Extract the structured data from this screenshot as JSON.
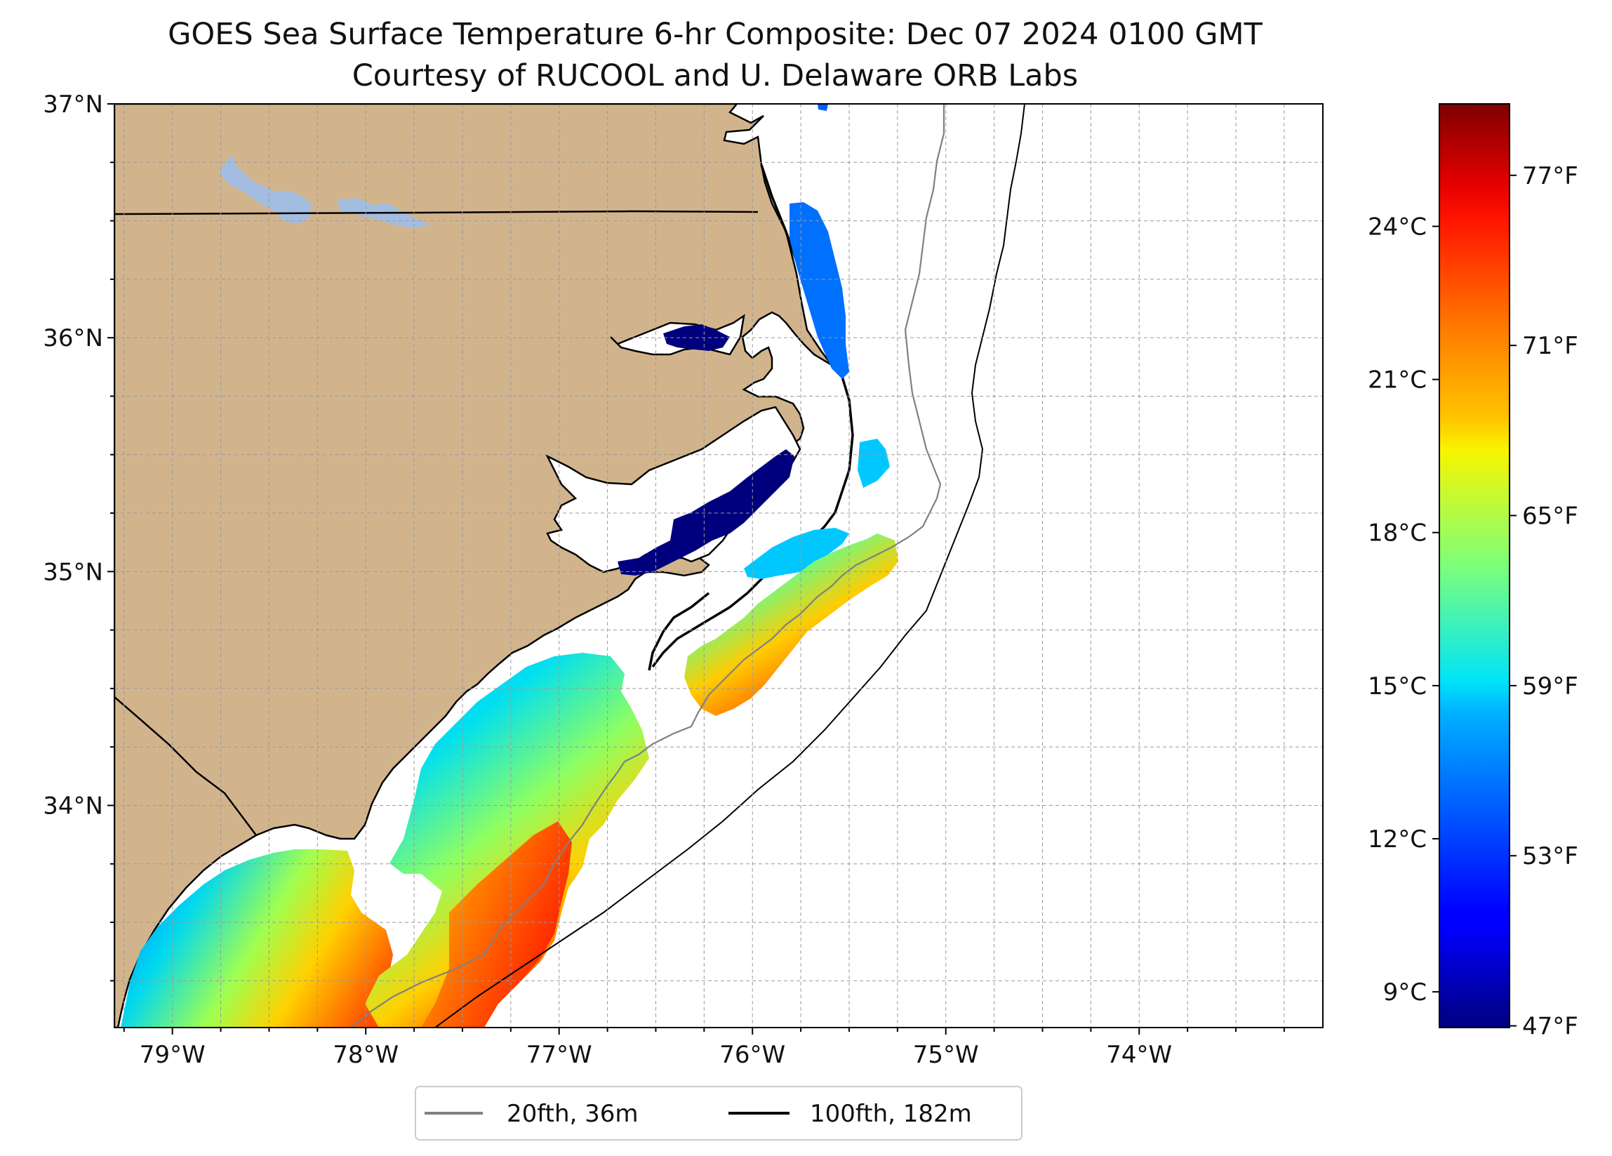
{
  "title": {
    "line1": "GOES Sea Surface Temperature 6-hr Composite: Dec 07 2024 0100 GMT",
    "line2": "Courtesy of RUCOOL and U. Delaware ORB Labs"
  },
  "map": {
    "lon_range": [
      -79.3,
      -73.05
    ],
    "lat_range": [
      33.05,
      37.0
    ],
    "lon_ticks": [
      {
        "value": -79,
        "label": "79°W"
      },
      {
        "value": -78,
        "label": "78°W"
      },
      {
        "value": -77,
        "label": "77°W"
      },
      {
        "value": -76,
        "label": "76°W"
      },
      {
        "value": -75,
        "label": "75°W"
      },
      {
        "value": -74,
        "label": "74°W"
      }
    ],
    "lat_ticks": [
      {
        "value": 37,
        "label": "37°N"
      },
      {
        "value": 36,
        "label": "36°N"
      },
      {
        "value": 35,
        "label": "35°N"
      },
      {
        "value": 34,
        "label": "34°N"
      }
    ],
    "grid": true,
    "colors": {
      "land": "#d2b48c",
      "lake": "#a2bde0",
      "coastline": "#000000",
      "isobath_20fth": "#808080",
      "isobath_100fth": "#000000"
    }
  },
  "legend": {
    "items": [
      {
        "label": "20fth, 36m",
        "color": "#808080"
      },
      {
        "label": "100fth, 182m",
        "color": "#000000"
      }
    ]
  },
  "colorbar": {
    "cmap": "jet",
    "range_c": [
      8.3,
      26.4
    ],
    "celsius_ticks": [
      {
        "value": 9,
        "label": "9°C"
      },
      {
        "value": 12,
        "label": "12°C"
      },
      {
        "value": 15,
        "label": "15°C"
      },
      {
        "value": 18,
        "label": "18°C"
      },
      {
        "value": 21,
        "label": "21°C"
      },
      {
        "value": 24,
        "label": "24°C"
      }
    ],
    "fahrenheit_ticks": [
      {
        "value": 47,
        "label": "47°F"
      },
      {
        "value": 53,
        "label": "53°F"
      },
      {
        "value": 59,
        "label": "59°F"
      },
      {
        "value": 65,
        "label": "65°F"
      },
      {
        "value": 71,
        "label": "71°F"
      },
      {
        "value": 77,
        "label": "77°F"
      }
    ]
  }
}
